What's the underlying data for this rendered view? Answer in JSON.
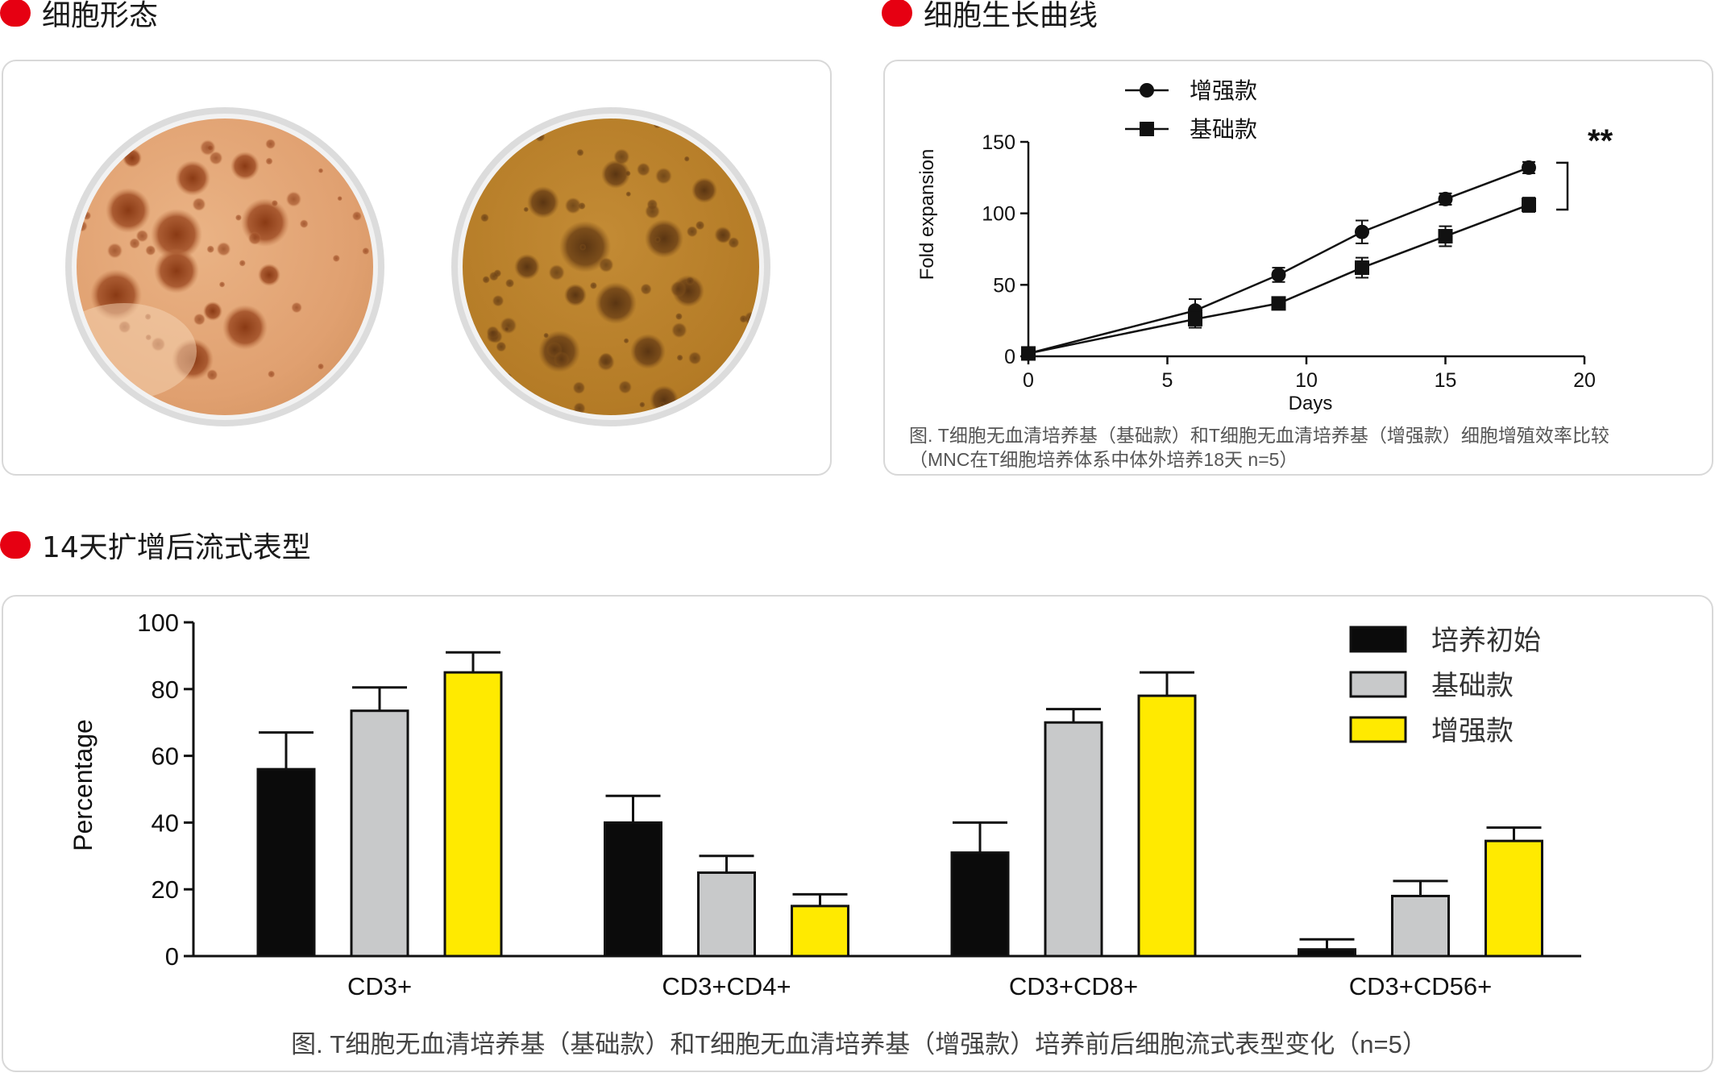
{
  "sections": {
    "morphology_title": "细胞形态",
    "growth_title": "细胞生长曲线",
    "flow_title": "14天扩增后流式表型"
  },
  "colors": {
    "accent": "#e60012",
    "dish_rim": "#dcdcdc",
    "dish_left_bg": "#e2a576",
    "dish_right_bg": "#b7822e",
    "colony_left": "#9c4a1f",
    "colony_right": "#6d4217"
  },
  "chart_data": [
    {
      "type": "line",
      "x": [
        0,
        6,
        9,
        12,
        15,
        18
      ],
      "series": [
        {
          "name": "增强款",
          "marker": "circle",
          "values": [
            2,
            32,
            57,
            87,
            110,
            132
          ],
          "errors": [
            1,
            8,
            5,
            8,
            4,
            4
          ]
        },
        {
          "name": "基础款",
          "marker": "square",
          "values": [
            2,
            26,
            37,
            62,
            84,
            106
          ],
          "errors": [
            1,
            6,
            4,
            7,
            7,
            5
          ]
        }
      ],
      "xlabel": "Days",
      "ylabel": "Fold expansion",
      "xlim": [
        0,
        20
      ],
      "ylim": [
        0,
        150
      ],
      "xticks": [
        0,
        5,
        10,
        15,
        20
      ],
      "yticks": [
        0,
        50,
        100,
        150
      ],
      "significance": "**",
      "legend_position": "top-left",
      "caption_line1": "图. T细胞无血清培养基（基础款）和T细胞无血清培养基（增强款）细胞增殖效率比较",
      "caption_line2": "（MNC在T细胞培养体系中体外培养18天 n=5）"
    },
    {
      "type": "bar",
      "categories": [
        "CD3+",
        "CD3+CD4+",
        "CD3+CD8+",
        "CD3+CD56+"
      ],
      "series": [
        {
          "name": "培养初始",
          "color": "#0b0b0b",
          "values": [
            56,
            40,
            31,
            2
          ],
          "errors": [
            11,
            8,
            9,
            3
          ]
        },
        {
          "name": "基础款",
          "color": "#c8c9ca",
          "values": [
            73.5,
            25,
            70,
            18
          ],
          "errors": [
            7,
            5,
            4,
            4.5
          ]
        },
        {
          "name": "增强款",
          "color": "#ffea00",
          "values": [
            85,
            15,
            78,
            34.5
          ],
          "errors": [
            6,
            3.5,
            7,
            4
          ]
        }
      ],
      "ylabel": "Percentage",
      "ylim": [
        0,
        100
      ],
      "yticks": [
        0,
        20,
        40,
        60,
        80,
        100
      ],
      "legend_position": "top-right",
      "caption": "图. T细胞无血清培养基（基础款）和T细胞无血清培养基（增强款）培养前后细胞流式表型变化（n=5）"
    }
  ]
}
